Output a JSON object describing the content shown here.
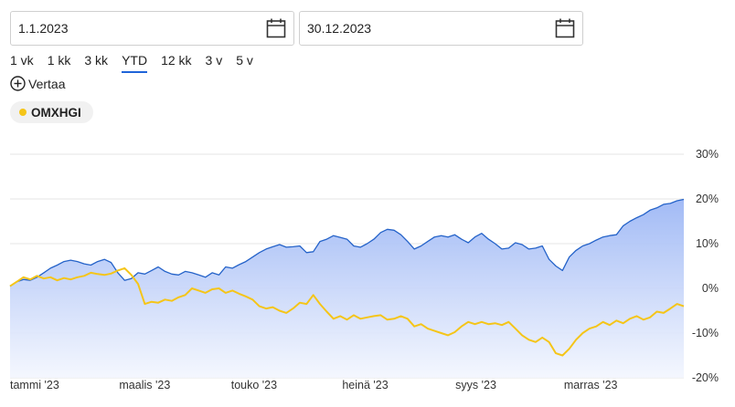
{
  "date_range": {
    "start": "1.1.2023",
    "end": "30.12.2023"
  },
  "ranges": [
    "1 vk",
    "1 kk",
    "3 kk",
    "YTD",
    "12 kk",
    "3 v",
    "5 v"
  ],
  "active_range": "YTD",
  "compare_label": "Vertaa",
  "chip": {
    "label": "OMXHGI",
    "color": "#f5c518"
  },
  "colors": {
    "main_line": "#2563c9",
    "main_fill_top": "#9db7f5",
    "main_fill_bottom": "#f3f6fe",
    "compare_line": "#f5c518",
    "grid": "#e4e4e4",
    "accent": "#1f64d8"
  },
  "chart_data": {
    "type": "line",
    "y_ticks": [
      "30%",
      "20%",
      "10%",
      "0%",
      "-10%",
      "-20%"
    ],
    "ylim": [
      -20,
      30
    ],
    "x_ticks": [
      {
        "label": "tammi '23",
        "t": 0.0
      },
      {
        "label": "maalis '23",
        "t": 0.162
      },
      {
        "label": "touko '23",
        "t": 0.328
      },
      {
        "label": "heinä '23",
        "t": 0.493
      },
      {
        "label": "syys '23",
        "t": 0.661
      },
      {
        "label": "marras '23",
        "t": 0.822
      }
    ],
    "series": [
      {
        "t": [
          0,
          0.01,
          0.02,
          0.03,
          0.04,
          0.05,
          0.06,
          0.07,
          0.08,
          0.09,
          0.1,
          0.11,
          0.12,
          0.13,
          0.14,
          0.15,
          0.16,
          0.17,
          0.18,
          0.19,
          0.2,
          0.21,
          0.22,
          0.23,
          0.24,
          0.25,
          0.26,
          0.27,
          0.28,
          0.29,
          0.3,
          0.31,
          0.32,
          0.33,
          0.34,
          0.35,
          0.36,
          0.37,
          0.38,
          0.39,
          0.4,
          0.41,
          0.42,
          0.43,
          0.44,
          0.45,
          0.46,
          0.47,
          0.48,
          0.49,
          0.5,
          0.51,
          0.52,
          0.53,
          0.54,
          0.55,
          0.56,
          0.57,
          0.58,
          0.59,
          0.6,
          0.61,
          0.62,
          0.63,
          0.64,
          0.65,
          0.66,
          0.67,
          0.68,
          0.69,
          0.7,
          0.71,
          0.72,
          0.73,
          0.74,
          0.75,
          0.76,
          0.77,
          0.78,
          0.79,
          0.8,
          0.81,
          0.82,
          0.83,
          0.84,
          0.85,
          0.86,
          0.87,
          0.88,
          0.89,
          0.9,
          0.91,
          0.92,
          0.93,
          0.94,
          0.95,
          0.96,
          0.97,
          0.98,
          0.99,
          1.0
        ],
        "values": [
          0.5,
          1.5,
          2.0,
          1.8,
          2.5,
          3.5,
          4.5,
          5.2,
          6.0,
          6.3,
          6.0,
          5.5,
          5.2,
          6.0,
          6.5,
          5.8,
          3.5,
          1.8,
          2.2,
          3.5,
          3.2,
          4.0,
          4.8,
          3.8,
          3.2,
          3.0,
          3.8,
          3.5,
          3.0,
          2.5,
          3.5,
          3.0,
          4.8,
          4.5,
          5.3,
          6.0,
          7.0,
          8.0,
          8.8,
          9.3,
          9.8,
          9.2,
          9.3,
          9.5,
          8.0,
          8.2,
          10.5,
          11.0,
          11.8,
          11.4,
          11.0,
          9.5,
          9.2,
          10.0,
          11.0,
          12.5,
          13.2,
          13.0,
          12.0,
          10.5,
          8.8,
          9.5,
          10.5,
          11.5,
          11.8,
          11.5,
          12.0,
          11.0,
          10.2,
          11.5,
          12.3,
          11.0,
          10.0,
          8.8,
          9.0,
          10.2,
          9.8,
          8.8,
          9.0,
          9.5,
          6.5,
          5.0,
          4.0,
          7.0,
          8.5,
          9.5,
          10.0,
          10.8,
          11.5,
          11.8,
          12.0,
          14.0,
          15.0,
          15.8,
          16.5,
          17.5,
          18.0,
          18.8,
          19.0,
          19.6,
          19.9
        ]
      },
      {
        "name": "OMXHGI",
        "t": [
          0,
          0.01,
          0.02,
          0.03,
          0.04,
          0.05,
          0.06,
          0.07,
          0.08,
          0.09,
          0.1,
          0.11,
          0.12,
          0.13,
          0.14,
          0.15,
          0.16,
          0.17,
          0.18,
          0.19,
          0.2,
          0.21,
          0.22,
          0.23,
          0.24,
          0.25,
          0.26,
          0.27,
          0.28,
          0.29,
          0.3,
          0.31,
          0.32,
          0.33,
          0.34,
          0.35,
          0.36,
          0.37,
          0.38,
          0.39,
          0.4,
          0.41,
          0.42,
          0.43,
          0.44,
          0.45,
          0.46,
          0.47,
          0.48,
          0.49,
          0.5,
          0.51,
          0.52,
          0.53,
          0.54,
          0.55,
          0.56,
          0.57,
          0.58,
          0.59,
          0.6,
          0.61,
          0.62,
          0.63,
          0.64,
          0.65,
          0.66,
          0.67,
          0.68,
          0.69,
          0.7,
          0.71,
          0.72,
          0.73,
          0.74,
          0.75,
          0.76,
          0.77,
          0.78,
          0.79,
          0.8,
          0.81,
          0.82,
          0.83,
          0.84,
          0.85,
          0.86,
          0.87,
          0.88,
          0.89,
          0.9,
          0.91,
          0.92,
          0.93,
          0.94,
          0.95,
          0.96,
          0.97,
          0.98,
          0.99,
          1.0
        ],
        "values": [
          0.5,
          1.5,
          2.5,
          2.0,
          2.8,
          2.2,
          2.5,
          1.8,
          2.3,
          2.0,
          2.5,
          2.8,
          3.5,
          3.2,
          3.0,
          3.3,
          4.0,
          4.5,
          3.0,
          1.0,
          -3.5,
          -3.0,
          -3.2,
          -2.5,
          -2.8,
          -2.0,
          -1.5,
          0.0,
          -0.5,
          -1.0,
          -0.2,
          0.0,
          -1.0,
          -0.5,
          -1.2,
          -1.8,
          -2.5,
          -4.0,
          -4.5,
          -4.2,
          -5.0,
          -5.5,
          -4.5,
          -3.2,
          -3.5,
          -1.5,
          -3.5,
          -5.2,
          -6.8,
          -6.2,
          -7.0,
          -6.0,
          -6.8,
          -6.5,
          -6.2,
          -6.0,
          -7.0,
          -6.8,
          -6.2,
          -6.8,
          -8.5,
          -8.0,
          -9.0,
          -9.5,
          -10.0,
          -10.5,
          -9.8,
          -8.5,
          -7.5,
          -8.0,
          -7.5,
          -8.0,
          -7.8,
          -8.2,
          -7.5,
          -9.0,
          -10.5,
          -11.5,
          -12.0,
          -11.0,
          -12.0,
          -14.5,
          -15.0,
          -13.5,
          -11.5,
          -10.0,
          -9.0,
          -8.5,
          -7.5,
          -8.2,
          -7.2,
          -7.8,
          -6.8,
          -6.2,
          -7.0,
          -6.5,
          -5.2,
          -5.5,
          -4.5,
          -3.5,
          -4.0
        ]
      }
    ]
  }
}
